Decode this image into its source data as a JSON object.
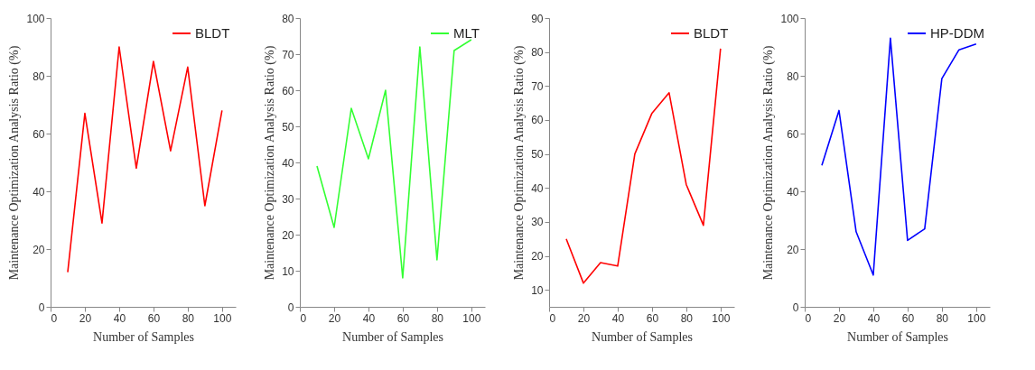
{
  "chart_data": [
    {
      "type": "line",
      "xlabel": "Number of Samples",
      "ylabel": "Maintenance Optimization Analysis Ratio (%)",
      "x": [
        10,
        20,
        30,
        40,
        50,
        60,
        70,
        80,
        90,
        100
      ],
      "xlim": [
        0,
        108
      ],
      "xticks": [
        0,
        20,
        40,
        60,
        80,
        100
      ],
      "ylim": [
        0,
        100
      ],
      "yticks": [
        0,
        20,
        40,
        60,
        80,
        100
      ],
      "grid": false,
      "legend": "top right",
      "series": [
        {
          "name": "BLDT",
          "color": "#ff0000",
          "values": [
            12,
            67,
            29,
            90,
            48,
            85,
            54,
            83,
            35,
            68
          ]
        }
      ]
    },
    {
      "type": "line",
      "xlabel": "Number of Samples",
      "ylabel": "Maintenance Optimization Analysis Ratio (%)",
      "x": [
        10,
        20,
        30,
        40,
        50,
        60,
        70,
        80,
        90,
        100
      ],
      "xlim": [
        0,
        108
      ],
      "xticks": [
        0,
        20,
        40,
        60,
        80,
        100
      ],
      "ylim": [
        0,
        80
      ],
      "yticks": [
        0,
        10,
        20,
        30,
        40,
        50,
        60,
        70,
        80
      ],
      "grid": false,
      "legend": "top right",
      "series": [
        {
          "name": "MLT",
          "color": "#33ff33",
          "values": [
            39,
            22,
            55,
            41,
            60,
            8,
            72,
            13,
            71,
            74
          ]
        }
      ]
    },
    {
      "type": "line",
      "xlabel": "Number of Samples",
      "ylabel": "Maintenance Optimization Analysis Ratio (%)",
      "x": [
        10,
        20,
        30,
        40,
        50,
        60,
        70,
        80,
        90,
        100
      ],
      "xlim": [
        0,
        108
      ],
      "xticks": [
        0,
        20,
        40,
        60,
        80,
        100
      ],
      "ylim": [
        5,
        90
      ],
      "yticks": [
        10,
        20,
        30,
        40,
        50,
        60,
        70,
        80,
        90
      ],
      "grid": false,
      "legend": "top right",
      "series": [
        {
          "name": "BLDT",
          "color": "#ff0000",
          "values": [
            25,
            12,
            18,
            17,
            50,
            62,
            68,
            41,
            29,
            81
          ]
        }
      ]
    },
    {
      "type": "line",
      "xlabel": "Number of Samples",
      "ylabel": "Maintenance Optimization Analysis Ratio (%)",
      "x": [
        10,
        20,
        30,
        40,
        50,
        60,
        70,
        80,
        90,
        100
      ],
      "xlim": [
        0,
        108
      ],
      "xticks": [
        0,
        20,
        40,
        60,
        80,
        100
      ],
      "ylim": [
        0,
        100
      ],
      "yticks": [
        0,
        20,
        40,
        60,
        80,
        100
      ],
      "grid": false,
      "legend": "top right",
      "series": [
        {
          "name": "HP-DDM",
          "color": "#0000ff",
          "values": [
            49,
            68,
            26,
            11,
            93,
            23,
            27,
            79,
            89,
            91
          ]
        }
      ]
    }
  ]
}
